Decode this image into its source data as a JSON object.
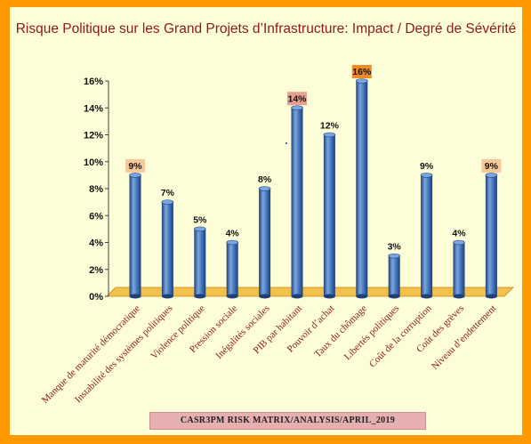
{
  "chart_data": {
    "type": "bar",
    "title": "Risque Politique sur les Grand Projets d’Infrastructure: Impact / Degré de Sévérité",
    "categories": [
      "Manque de maturité démocratique",
      "Instabilité des systèmes politiques",
      "Violence politique",
      "Pression sociale",
      "Inégalités sociales",
      "PIB par habitant",
      "Pouvoir d’achat",
      "Taux du chômage",
      "Libertés politiques",
      "Coût de la corruption",
      "Coût des grèves",
      "Niveau d’endettement"
    ],
    "values": [
      9,
      7,
      5,
      4,
      8,
      14,
      12,
      16,
      3,
      9,
      4,
      9
    ],
    "data_labels": [
      "9%",
      "7%",
      "5%",
      "4%",
      "8%",
      "14%",
      "12%",
      "16%",
      "3%",
      "9%",
      "4%",
      "9%"
    ],
    "highlighted_labels": {
      "0": "#f8c898",
      "5": "#e8a090",
      "7": "#ef8a2a",
      "11": "#f8c898"
    },
    "y_ticks": [
      "0%",
      "2%",
      "4%",
      "6%",
      "8%",
      "10%",
      "12%",
      "14%",
      "16%"
    ],
    "ylim": [
      0,
      16
    ],
    "xlabel": "",
    "ylabel": "",
    "grid": false,
    "legend": "none",
    "colors": {
      "bar": "#3d6fb5",
      "bar_dark": "#1f3f78",
      "bar_light": "#7aa6e0",
      "floor": "#f2c14a",
      "floor_edge": "#c08820",
      "category_text": "#8b1a1a",
      "background": "#fdfdd8",
      "frame": "#ff9900"
    }
  },
  "footer": {
    "text": "CASR3PM  RISK  MATRIX/ANALYSIS/APRIL_2019"
  }
}
